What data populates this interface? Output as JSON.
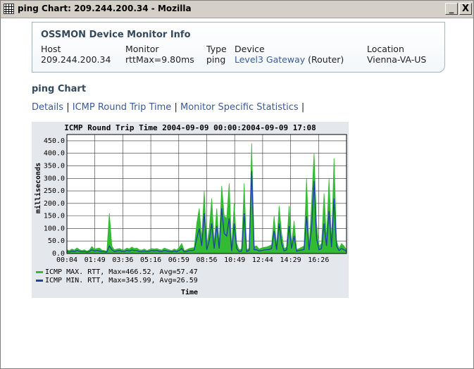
{
  "window": {
    "title": "ping Chart: 209.244.200.34 - Mozilla",
    "icon": "app-grid-icon"
  },
  "titlebar_buttons": {
    "minimize": "_",
    "close": "X"
  },
  "info": {
    "title": "OSSMON Device Monitor Info",
    "host_label": "Host",
    "host": "209.244.200.34",
    "monitor_label": "Monitor",
    "monitor": "rttMax=9.80ms",
    "type_label": "Type",
    "type": "ping",
    "device_label": "Device",
    "device_link": "Level3 Gateway",
    "device_kind": "(Router)",
    "location_label": "Location",
    "location": "Vienna-VA-US"
  },
  "section_title": "ping Chart",
  "nav": {
    "details": "Details",
    "sep1": "|",
    "icmp": "ICMP Round Trip Time",
    "sep2": "|",
    "stats": "Monitor Specific Statistics",
    "sep3": "|"
  },
  "chart_data": {
    "type": "area",
    "title": "ICMP Round Trip Time 2004-09-09 00:00:2004-09-09 17:08",
    "ylabel": "milliseconds",
    "xlabel": "Time",
    "ylim": [
      0,
      475
    ],
    "yticks": [
      "0.0",
      "50.0",
      "100.0",
      "150.0",
      "200.0",
      "250.0",
      "300.0",
      "350.0",
      "400.0",
      "450.0"
    ],
    "xticks": [
      "00:04",
      "01:49",
      "03:36",
      "05:16",
      "06:59",
      "08:56",
      "10:49",
      "12:44",
      "14:29",
      "16:26"
    ],
    "grid": true,
    "legend_position": "bottom-left",
    "colors": {
      "max": "#33bb33",
      "min": "#1f3fa8"
    },
    "series": [
      {
        "name": "ICMP MAX. RTT, Max=466.52, Avg=57.47",
        "values": [
          15,
          12,
          18,
          14,
          22,
          16,
          12,
          15,
          10,
          14,
          28,
          18,
          20,
          22,
          14,
          12,
          10,
          160,
          30,
          15,
          18,
          20,
          16,
          14,
          22,
          18,
          26,
          20,
          22,
          15,
          14,
          18,
          12,
          16,
          20,
          18,
          20,
          16,
          14,
          22,
          18,
          15,
          12,
          18,
          14,
          25,
          40,
          12,
          15,
          20,
          22,
          24,
          120,
          180,
          60,
          250,
          30,
          100,
          220,
          40,
          180,
          40,
          270,
          150,
          140,
          280,
          20,
          200,
          40,
          15,
          18,
          280,
          15,
          20,
          440,
          28,
          30,
          18,
          22,
          25,
          26,
          30,
          35,
          150,
          30,
          190,
          80,
          20,
          25,
          190,
          40,
          130,
          16,
          20,
          25,
          30,
          300,
          25,
          200,
          400,
          120,
          30,
          40,
          240,
          60,
          300,
          45,
          380,
          50,
          20,
          40,
          30,
          15
        ]
      },
      {
        "name": "ICMP MIN. RTT, Max=345.99, Avg=26.59",
        "values": [
          8,
          6,
          10,
          8,
          12,
          9,
          7,
          8,
          6,
          8,
          15,
          10,
          12,
          10,
          8,
          7,
          6,
          30,
          15,
          8,
          10,
          12,
          9,
          8,
          12,
          10,
          14,
          12,
          12,
          8,
          8,
          10,
          7,
          9,
          12,
          10,
          12,
          9,
          8,
          12,
          10,
          8,
          7,
          10,
          8,
          12,
          20,
          7,
          8,
          12,
          12,
          14,
          60,
          100,
          30,
          160,
          15,
          50,
          120,
          20,
          110,
          20,
          180,
          80,
          70,
          140,
          10,
          120,
          20,
          8,
          10,
          160,
          8,
          12,
          330,
          15,
          15,
          10,
          12,
          14,
          15,
          16,
          20,
          90,
          15,
          120,
          40,
          10,
          14,
          110,
          20,
          70,
          9,
          12,
          14,
          16,
          150,
          14,
          100,
          290,
          60,
          15,
          20,
          120,
          30,
          170,
          25,
          220,
          30,
          12,
          20,
          15,
          8
        ]
      }
    ]
  }
}
